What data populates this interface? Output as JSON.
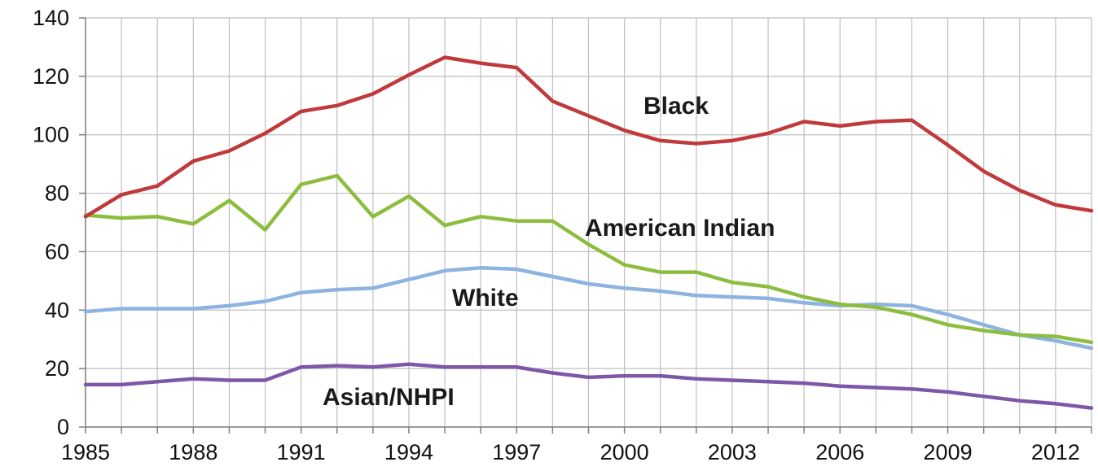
{
  "chart_data": {
    "type": "line",
    "x": [
      1985,
      1986,
      1987,
      1988,
      1989,
      1990,
      1991,
      1992,
      1993,
      1994,
      1995,
      1996,
      1997,
      1998,
      1999,
      2000,
      2001,
      2002,
      2003,
      2004,
      2005,
      2006,
      2007,
      2008,
      2009,
      2010,
      2011,
      2012,
      2013
    ],
    "x_tick_labels": [
      "1985",
      "1988",
      "1991",
      "1994",
      "1997",
      "2000",
      "2003",
      "2006",
      "2009",
      "2012"
    ],
    "y_tick_labels": [
      "0",
      "20",
      "40",
      "60",
      "80",
      "100",
      "120",
      "140"
    ],
    "ylim": [
      0,
      140
    ],
    "grid": true,
    "series": [
      {
        "name": "Black",
        "color": "#c0393b",
        "values": [
          72,
          79.5,
          82.5,
          91,
          94.5,
          100.5,
          108,
          110,
          114,
          120.5,
          126.5,
          124.5,
          123,
          111.5,
          106.5,
          101.5,
          98,
          97,
          98,
          100.5,
          104.5,
          103,
          104.5,
          105,
          96.5,
          87.5,
          81,
          76,
          74
        ]
      },
      {
        "name": "American Indian",
        "color": "#8dbd3f",
        "values": [
          72.5,
          71.5,
          72,
          69.5,
          77.5,
          67.5,
          83,
          86,
          72,
          79,
          69,
          72,
          70.5,
          70.5,
          62.5,
          55.5,
          53,
          53,
          49.5,
          48,
          44.5,
          42,
          41,
          38.5,
          35,
          33,
          31.5,
          31,
          29
        ]
      },
      {
        "name": "White",
        "color": "#8db3e0",
        "values": [
          39.5,
          40.5,
          40.5,
          40.5,
          41.5,
          43,
          46,
          47,
          47.5,
          50.5,
          53.5,
          54.5,
          54,
          51.5,
          49,
          47.5,
          46.5,
          45,
          44.5,
          44,
          42.5,
          41.5,
          42,
          41.5,
          38.5,
          35,
          31.5,
          29.5,
          27
        ]
      },
      {
        "name": "Asian/NHPI",
        "color": "#7e58a8",
        "values": [
          14.5,
          14.5,
          15.5,
          16.5,
          16,
          16,
          20.5,
          21,
          20.5,
          21.5,
          20.5,
          20.5,
          20.5,
          18.5,
          17,
          17.5,
          17.5,
          16.5,
          16,
          15.5,
          15,
          14,
          13.5,
          13,
          12,
          10.5,
          9,
          8,
          6.5
        ]
      }
    ]
  }
}
